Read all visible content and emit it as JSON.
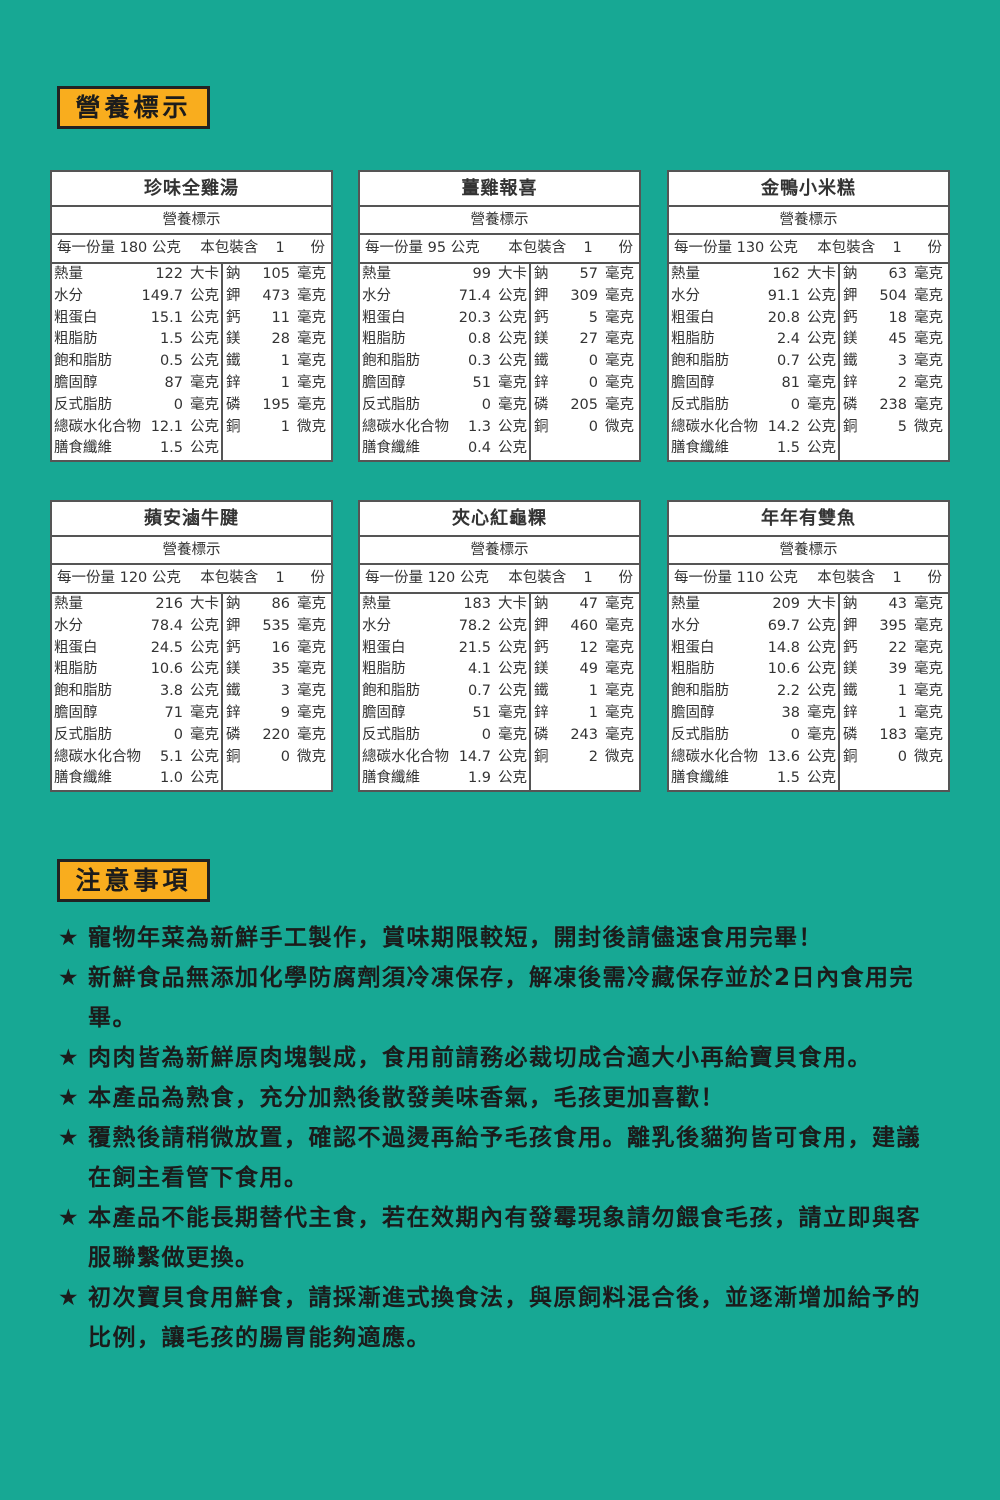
{
  "nutrition_header": "營養標示",
  "notes_header": "注意事項",
  "subtitle": "營養標示",
  "serving_prefix": "每一份量",
  "serving_unit": "公克",
  "package_text": "本包裝含",
  "package_count": "1",
  "package_unit": "份",
  "colors": {
    "background": "#17a894",
    "tag": "#f9ad1e"
  },
  "products": [
    {
      "name": "珍味全雞湯",
      "serving": "180",
      "left": [
        [
          "熱量",
          "122",
          "大卡"
        ],
        [
          "水分",
          "149.7",
          "公克"
        ],
        [
          "粗蛋白",
          "15.1",
          "公克"
        ],
        [
          "粗脂肪",
          "1.5",
          "公克"
        ],
        [
          "飽和脂肪",
          "0.5",
          "公克"
        ],
        [
          "膽固醇",
          "87",
          "毫克"
        ],
        [
          "反式脂肪",
          "0",
          "毫克"
        ],
        [
          "總碳水化合物",
          "12.1",
          "公克"
        ],
        [
          "膳食纖維",
          "1.5",
          "公克"
        ]
      ],
      "right": [
        [
          "鈉",
          "105",
          "毫克"
        ],
        [
          "鉀",
          "473",
          "毫克"
        ],
        [
          "鈣",
          "11",
          "毫克"
        ],
        [
          "鎂",
          "28",
          "毫克"
        ],
        [
          "鐵",
          "1",
          "毫克"
        ],
        [
          "鋅",
          "1",
          "毫克"
        ],
        [
          "磷",
          "195",
          "毫克"
        ],
        [
          "銅",
          "1",
          "微克"
        ]
      ]
    },
    {
      "name": "薑雞報喜",
      "serving": "95",
      "left": [
        [
          "熱量",
          "99",
          "大卡"
        ],
        [
          "水分",
          "71.4",
          "公克"
        ],
        [
          "粗蛋白",
          "20.3",
          "公克"
        ],
        [
          "粗脂肪",
          "0.8",
          "公克"
        ],
        [
          "飽和脂肪",
          "0.3",
          "公克"
        ],
        [
          "膽固醇",
          "51",
          "毫克"
        ],
        [
          "反式脂肪",
          "0",
          "毫克"
        ],
        [
          "總碳水化合物",
          "1.3",
          "公克"
        ],
        [
          "膳食纖維",
          "0.4",
          "公克"
        ]
      ],
      "right": [
        [
          "鈉",
          "57",
          "毫克"
        ],
        [
          "鉀",
          "309",
          "毫克"
        ],
        [
          "鈣",
          "5",
          "毫克"
        ],
        [
          "鎂",
          "27",
          "毫克"
        ],
        [
          "鐵",
          "0",
          "毫克"
        ],
        [
          "鋅",
          "0",
          "毫克"
        ],
        [
          "磷",
          "205",
          "毫克"
        ],
        [
          "銅",
          "0",
          "微克"
        ]
      ]
    },
    {
      "name": "金鴨小米糕",
      "serving": "130",
      "left": [
        [
          "熱量",
          "162",
          "大卡"
        ],
        [
          "水分",
          "91.1",
          "公克"
        ],
        [
          "粗蛋白",
          "20.8",
          "公克"
        ],
        [
          "粗脂肪",
          "2.4",
          "公克"
        ],
        [
          "飽和脂肪",
          "0.7",
          "公克"
        ],
        [
          "膽固醇",
          "81",
          "毫克"
        ],
        [
          "反式脂肪",
          "0",
          "毫克"
        ],
        [
          "總碳水化合物",
          "14.2",
          "公克"
        ],
        [
          "膳食纖維",
          "1.5",
          "公克"
        ]
      ],
      "right": [
        [
          "鈉",
          "63",
          "毫克"
        ],
        [
          "鉀",
          "504",
          "毫克"
        ],
        [
          "鈣",
          "18",
          "毫克"
        ],
        [
          "鎂",
          "45",
          "毫克"
        ],
        [
          "鐵",
          "3",
          "毫克"
        ],
        [
          "鋅",
          "2",
          "毫克"
        ],
        [
          "磷",
          "238",
          "毫克"
        ],
        [
          "銅",
          "5",
          "微克"
        ]
      ]
    },
    {
      "name": "蘋安滷牛腱",
      "serving": "120",
      "left": [
        [
          "熱量",
          "216",
          "大卡"
        ],
        [
          "水分",
          "78.4",
          "公克"
        ],
        [
          "粗蛋白",
          "24.5",
          "公克"
        ],
        [
          "粗脂肪",
          "10.6",
          "公克"
        ],
        [
          "飽和脂肪",
          "3.8",
          "公克"
        ],
        [
          "膽固醇",
          "71",
          "毫克"
        ],
        [
          "反式脂肪",
          "0",
          "毫克"
        ],
        [
          "總碳水化合物",
          "5.1",
          "公克"
        ],
        [
          "膳食纖維",
          "1.0",
          "公克"
        ]
      ],
      "right": [
        [
          "鈉",
          "86",
          "毫克"
        ],
        [
          "鉀",
          "535",
          "毫克"
        ],
        [
          "鈣",
          "16",
          "毫克"
        ],
        [
          "鎂",
          "35",
          "毫克"
        ],
        [
          "鐵",
          "3",
          "毫克"
        ],
        [
          "鋅",
          "9",
          "毫克"
        ],
        [
          "磷",
          "220",
          "毫克"
        ],
        [
          "銅",
          "0",
          "微克"
        ]
      ]
    },
    {
      "name": "夾心紅龜粿",
      "serving": "120",
      "left": [
        [
          "熱量",
          "183",
          "大卡"
        ],
        [
          "水分",
          "78.2",
          "公克"
        ],
        [
          "粗蛋白",
          "21.5",
          "公克"
        ],
        [
          "粗脂肪",
          "4.1",
          "公克"
        ],
        [
          "飽和脂肪",
          "0.7",
          "公克"
        ],
        [
          "膽固醇",
          "51",
          "毫克"
        ],
        [
          "反式脂肪",
          "0",
          "毫克"
        ],
        [
          "總碳水化合物",
          "14.7",
          "公克"
        ],
        [
          "膳食纖維",
          "1.9",
          "公克"
        ]
      ],
      "right": [
        [
          "鈉",
          "47",
          "毫克"
        ],
        [
          "鉀",
          "460",
          "毫克"
        ],
        [
          "鈣",
          "12",
          "毫克"
        ],
        [
          "鎂",
          "49",
          "毫克"
        ],
        [
          "鐵",
          "1",
          "毫克"
        ],
        [
          "鋅",
          "1",
          "毫克"
        ],
        [
          "磷",
          "243",
          "毫克"
        ],
        [
          "銅",
          "2",
          "微克"
        ]
      ]
    },
    {
      "name": "年年有雙魚",
      "serving": "110",
      "left": [
        [
          "熱量",
          "209",
          "大卡"
        ],
        [
          "水分",
          "69.7",
          "公克"
        ],
        [
          "粗蛋白",
          "14.8",
          "公克"
        ],
        [
          "粗脂肪",
          "10.6",
          "公克"
        ],
        [
          "飽和脂肪",
          "2.2",
          "公克"
        ],
        [
          "膽固醇",
          "38",
          "毫克"
        ],
        [
          "反式脂肪",
          "0",
          "毫克"
        ],
        [
          "總碳水化合物",
          "13.6",
          "公克"
        ],
        [
          "膳食纖維",
          "1.5",
          "公克"
        ]
      ],
      "right": [
        [
          "鈉",
          "43",
          "毫克"
        ],
        [
          "鉀",
          "395",
          "毫克"
        ],
        [
          "鈣",
          "22",
          "毫克"
        ],
        [
          "鎂",
          "39",
          "毫克"
        ],
        [
          "鐵",
          "1",
          "毫克"
        ],
        [
          "鋅",
          "1",
          "毫克"
        ],
        [
          "磷",
          "183",
          "毫克"
        ],
        [
          "銅",
          "0",
          "微克"
        ]
      ]
    }
  ],
  "notes_star": "★",
  "notes": [
    "寵物年菜為新鮮手工製作，賞味期限較短，開封後請儘速食用完畢！",
    "新鮮食品無添加化學防腐劑須冷凍保存，解凍後需冷藏保存並於2日內食用完畢。",
    "肉肉皆為新鮮原肉塊製成，食用前請務必裁切成合適大小再給寶貝食用。",
    "本產品為熟食，充分加熱後散發美味香氣，毛孩更加喜歡！",
    "覆熱後請稍微放置，確認不過燙再給予毛孩食用。離乳後貓狗皆可食用，建議在飼主看管下食用。",
    "本產品不能長期替代主食，若在效期內有發霉現象請勿餵食毛孩，請立即與客服聯繫做更換。",
    "初次寶貝食用鮮食，請採漸進式換食法，與原飼料混合後，並逐漸增加給予的比例，讓毛孩的腸胃能夠適應。"
  ]
}
